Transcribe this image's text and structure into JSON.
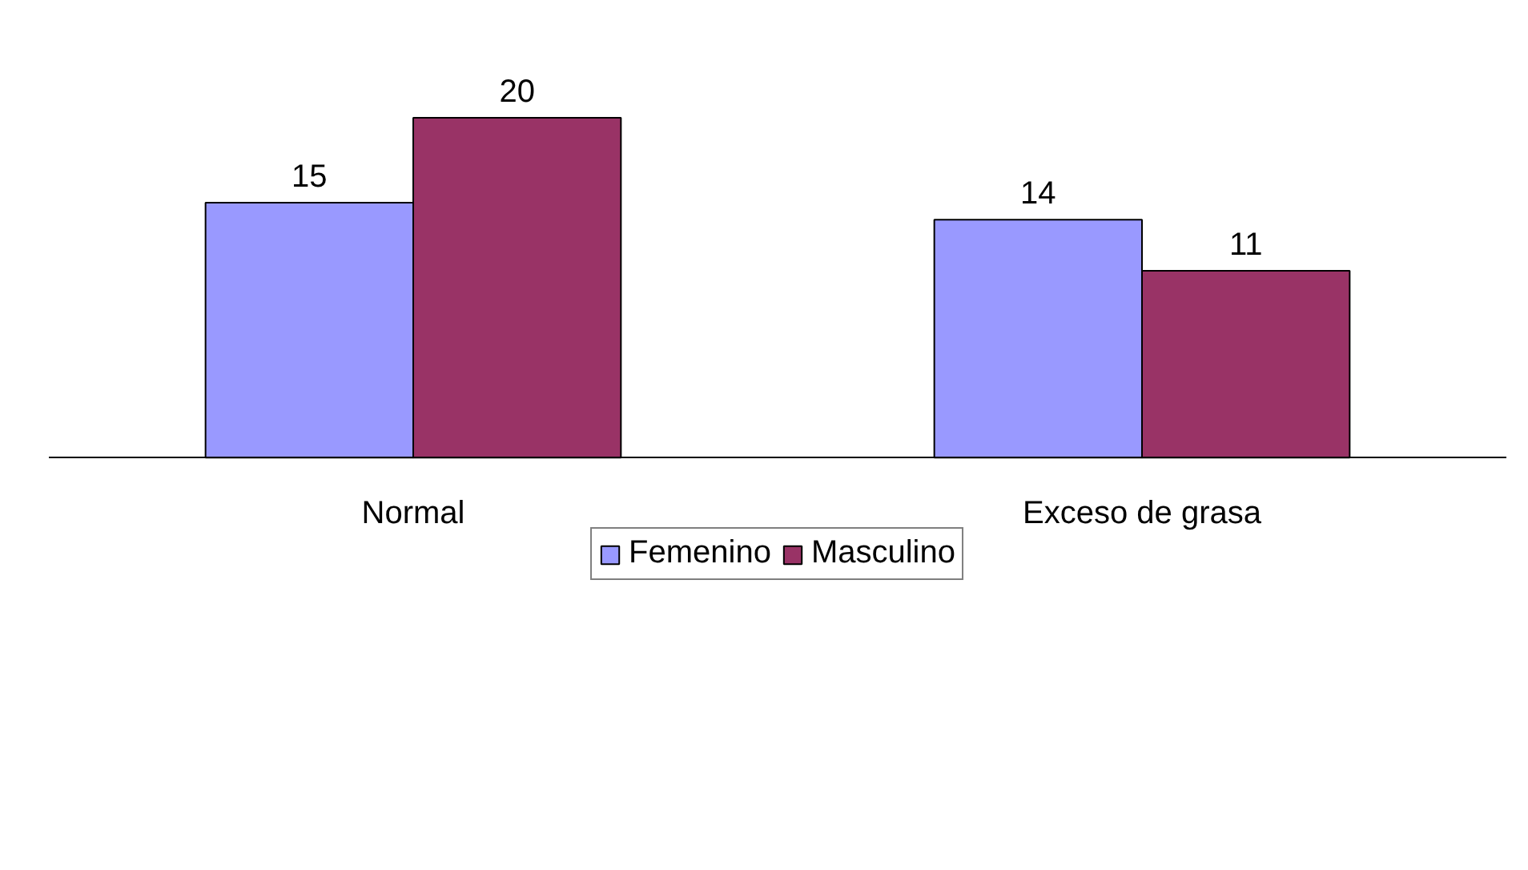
{
  "chart_data": {
    "type": "bar",
    "categories": [
      "Normal",
      "Exceso de grasa"
    ],
    "series": [
      {
        "name": "Femenino",
        "color": "#9999ff",
        "values": [
          15,
          14
        ]
      },
      {
        "name": "Masculino",
        "color": "#993366",
        "values": [
          20,
          11
        ]
      }
    ],
    "data_labels": true,
    "legend": "bottom",
    "grid": false
  }
}
